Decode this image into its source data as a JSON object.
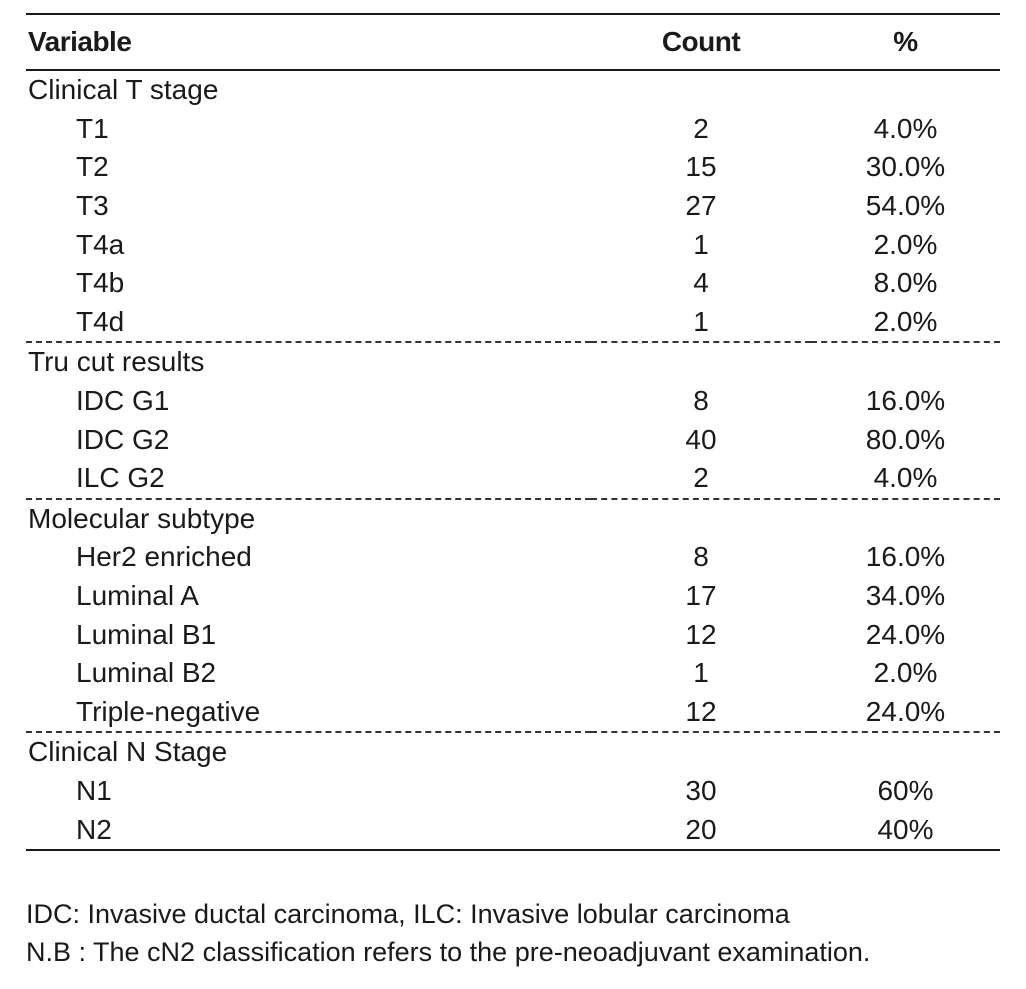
{
  "table": {
    "headers": {
      "variable": "Variable",
      "count": "Count",
      "percent": "%"
    },
    "groups": [
      {
        "title": "Clinical T stage",
        "rows": [
          {
            "label": "T1",
            "count": "2",
            "percent": "4.0%"
          },
          {
            "label": "T2",
            "count": "15",
            "percent": "30.0%"
          },
          {
            "label": "T3",
            "count": "27",
            "percent": "54.0%"
          },
          {
            "label": "T4a",
            "count": "1",
            "percent": "2.0%"
          },
          {
            "label": "T4b",
            "count": "4",
            "percent": "8.0%"
          },
          {
            "label": "T4d",
            "count": "1",
            "percent": "2.0%"
          }
        ]
      },
      {
        "title": "Tru cut results",
        "rows": [
          {
            "label": "IDC G1",
            "count": "8",
            "percent": "16.0%"
          },
          {
            "label": "IDC G2",
            "count": "40",
            "percent": "80.0%"
          },
          {
            "label": "ILC G2",
            "count": "2",
            "percent": "4.0%"
          }
        ]
      },
      {
        "title": "Molecular subtype",
        "rows": [
          {
            "label": "Her2 enriched",
            "count": "8",
            "percent": "16.0%"
          },
          {
            "label": "Luminal A",
            "count": "17",
            "percent": "34.0%"
          },
          {
            "label": "Luminal B1",
            "count": "12",
            "percent": "24.0%"
          },
          {
            "label": "Luminal B2",
            "count": "1",
            "percent": "2.0%"
          },
          {
            "label": "Triple-negative",
            "count": "12",
            "percent": "24.0%"
          }
        ]
      },
      {
        "title": "Clinical N Stage",
        "rows": [
          {
            "label": "N1",
            "count": "30",
            "percent": "60%"
          },
          {
            "label": "N2",
            "count": "20",
            "percent": "40%"
          }
        ]
      }
    ]
  },
  "notes": [
    "IDC: Invasive ductal carcinoma, ILC: Invasive lobular carcinoma",
    "N.B : The cN2 classification refers to the pre-neoadjuvant examination."
  ]
}
